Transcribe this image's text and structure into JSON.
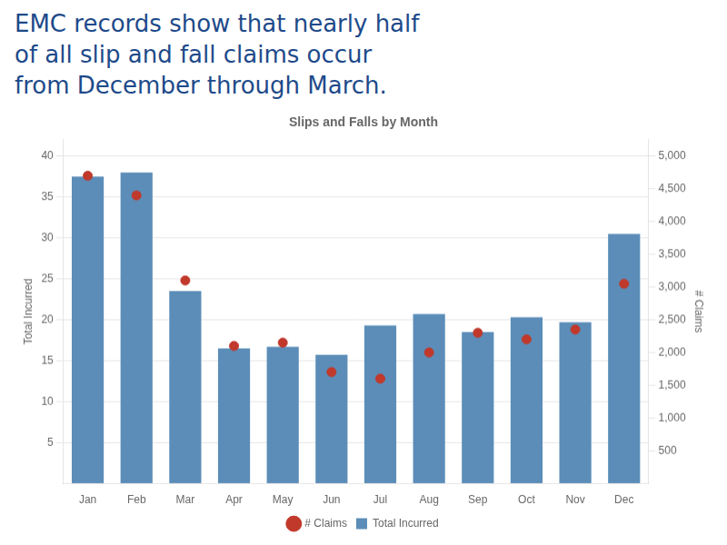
{
  "chart_data": {
    "type": "bar",
    "title": "Slips and Falls by Month",
    "annotations": [
      "EMC records show that nearly half",
      "of all slip and fall claims occur",
      "from December through March."
    ],
    "categories": [
      "Jan",
      "Feb",
      "Mar",
      "Apr",
      "May",
      "Jun",
      "Jul",
      "Aug",
      "Sep",
      "Oct",
      "Nov",
      "Dec"
    ],
    "series": [
      {
        "name": "Total Incurred",
        "type": "bar",
        "color": "#5b8db8",
        "values": [
          37.5,
          38.0,
          23.5,
          16.5,
          16.7,
          15.7,
          19.3,
          20.7,
          18.5,
          20.3,
          19.7,
          30.5
        ]
      },
      {
        "name": "# Claims",
        "type": "scatter",
        "color": "#c0392b",
        "marker": "circle",
        "axis": "y2",
        "values": [
          4700,
          4400,
          3100,
          2100,
          2150,
          1700,
          1600,
          2000,
          2300,
          2200,
          2350,
          3050
        ]
      }
    ],
    "ylabel": "Total Incurred",
    "y2label": "# Claims",
    "ylim": [
      0,
      42
    ],
    "yticks": [
      5,
      10,
      15,
      20,
      25,
      30,
      35,
      40
    ],
    "y2lim": [
      0,
      5250
    ],
    "y2ticks": [
      500,
      {
        "value": 1000,
        "label": "1,000"
      },
      {
        "value": 1500,
        "label": "1,500"
      },
      {
        "value": 2000,
        "label": "2,000"
      },
      {
        "value": 2500,
        "label": "2,500"
      },
      {
        "value": 3000,
        "label": "3,000"
      },
      {
        "value": 3500,
        "label": "3,500"
      },
      {
        "value": 4000,
        "label": "4,000"
      },
      {
        "value": 4500,
        "label": "4,500"
      },
      {
        "value": 5000,
        "label": "5,000"
      }
    ],
    "grid": true,
    "legend": "bottom"
  }
}
